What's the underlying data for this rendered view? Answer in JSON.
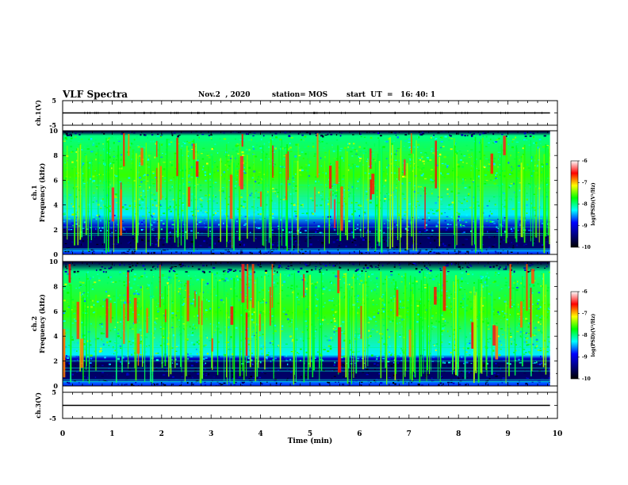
{
  "header": {
    "title": "VLF Spectra",
    "date": "Nov.2  , 2020",
    "station": "station= MOS",
    "start_ut": "start  UT  =   16: 40: 1"
  },
  "colors": {
    "trace": "#000000",
    "colormap": [
      "#000000",
      "#000080",
      "#0000ff",
      "#00ffff",
      "#00ff00",
      "#ffff00",
      "#ff0000",
      "#ffffff"
    ]
  },
  "chart_data": [
    {
      "type": "line",
      "panel": "ch1-waveform",
      "ylabel": "ch.1(V)",
      "ylim": [
        -5,
        5
      ],
      "yticks": [
        "5",
        "-5"
      ],
      "series": [
        {
          "x": [
            0,
            9.85
          ],
          "y": [
            0,
            0
          ]
        }
      ]
    },
    {
      "type": "heatmap",
      "panel": "ch1-spectrogram",
      "ylabel": "ch.1\nFrequency  (kHz)",
      "xlim": [
        0,
        10
      ],
      "ylim": [
        0,
        10
      ],
      "data_x_max": 9.85,
      "yticks": [
        "0",
        "2",
        "4",
        "6",
        "8",
        "10"
      ],
      "colorbar": {
        "label": "log(PSD)(V²/Hz)",
        "range": [
          -10,
          -6
        ],
        "ticks": [
          "-6",
          "-7",
          "-8",
          "-9",
          "-10"
        ]
      },
      "features": {
        "strong_band_khz": [
          3.2,
          9.6
        ],
        "quiet_band_khz": [
          0.5,
          1.8
        ],
        "spheric_count": 120,
        "red_burst_count": 38
      }
    },
    {
      "type": "heatmap",
      "panel": "ch2-spectrogram",
      "ylabel": "ch.2\nFrequency  (kHz)",
      "xlim": [
        0,
        10
      ],
      "ylim": [
        0,
        10
      ],
      "data_x_max": 9.85,
      "yticks": [
        "0",
        "2",
        "4",
        "6",
        "8",
        "10"
      ],
      "colorbar": {
        "label": "log(PSD)(V²/Hz)",
        "range": [
          -10,
          -6
        ],
        "ticks": [
          "-6",
          "-7",
          "-8",
          "-9",
          "-10"
        ]
      },
      "features": {
        "strong_band_khz": [
          2.5,
          9.2
        ],
        "quiet_band_khz": [
          0.5,
          1.8
        ],
        "spheric_count": 130,
        "red_burst_count": 45
      }
    },
    {
      "type": "line",
      "panel": "ch3-waveform",
      "ylabel": "ch.3(V)",
      "xlabel": "Time  (min)",
      "xlim": [
        0,
        10
      ],
      "ylim": [
        -5,
        5
      ],
      "yticks": [
        "5",
        "-5"
      ],
      "xticks": [
        "0",
        "1",
        "2",
        "3",
        "4",
        "5",
        "6",
        "7",
        "8",
        "9",
        "10"
      ],
      "series": [
        {
          "x": [
            0,
            9.85
          ],
          "y": [
            0,
            0
          ]
        }
      ]
    }
  ]
}
